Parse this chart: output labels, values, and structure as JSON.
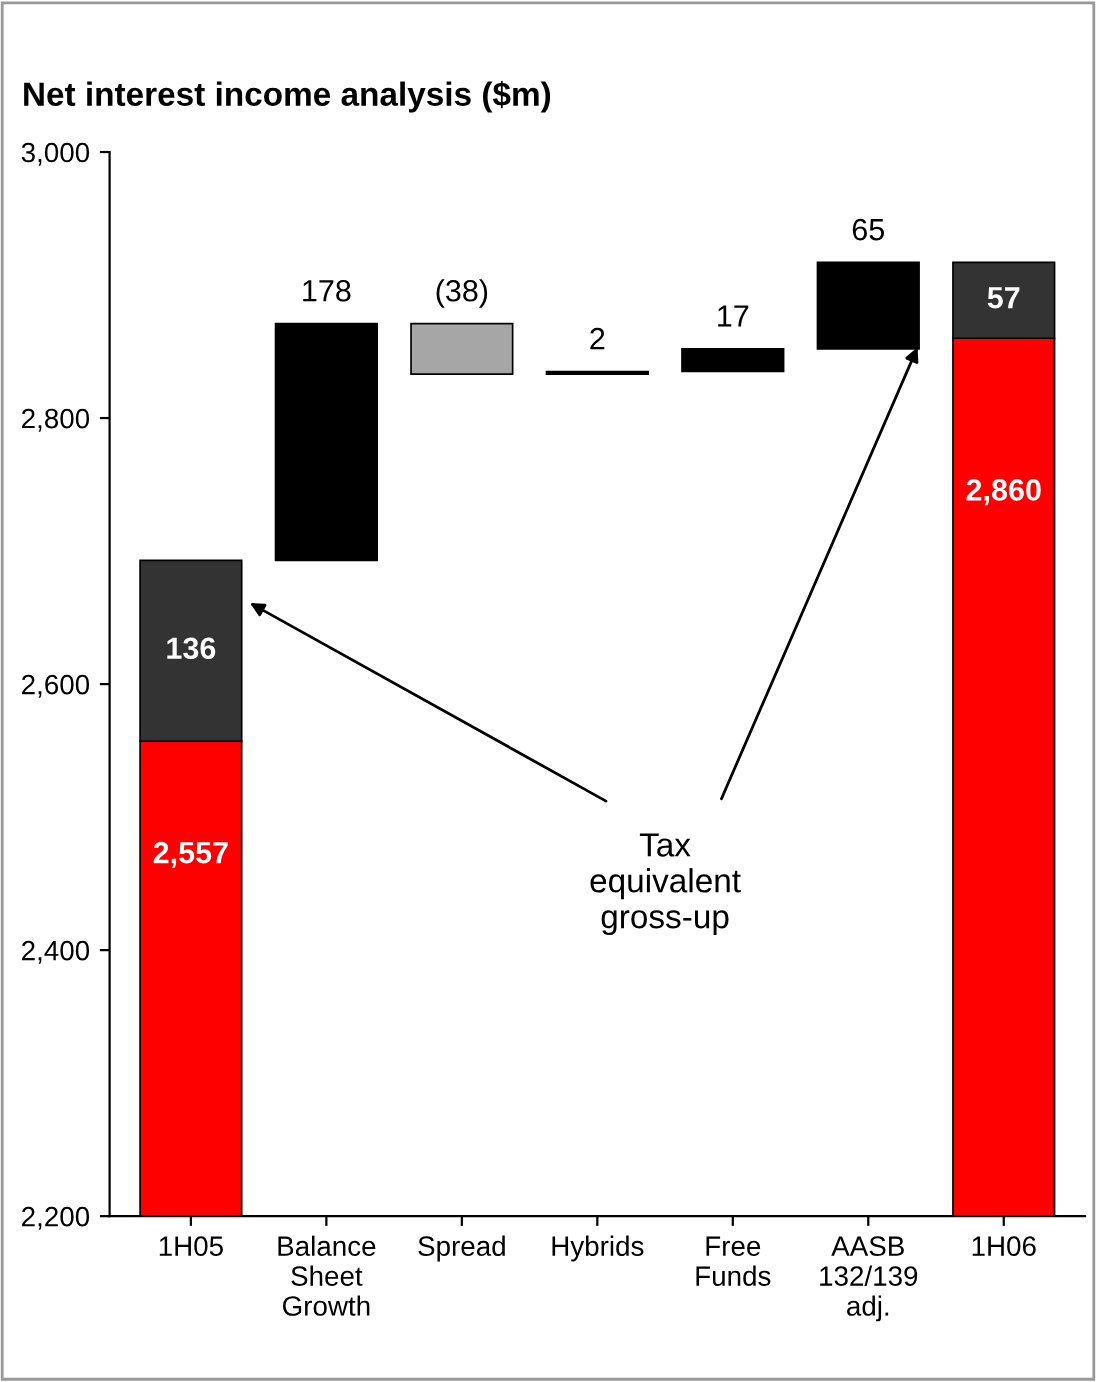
{
  "chart_data": {
    "type": "bar",
    "title": "Net interest income analysis ($m)",
    "categories": [
      "1H05",
      "Balance\nSheet\nGrowth",
      "Spread",
      "Hybrids",
      "Free\nFunds",
      "AASB\n132/139\nadj.",
      "1H06"
    ],
    "series": [
      {
        "color": "#ff0000",
        "values": [
          2557,
          null,
          null,
          null,
          null,
          null,
          2860
        ],
        "value_labels": [
          "2,557",
          null,
          null,
          null,
          null,
          null,
          "2,860"
        ]
      },
      {
        "color": "#333333",
        "base": [
          2557,
          null,
          null,
          null,
          null,
          null,
          2860
        ],
        "values": [
          136,
          null,
          null,
          null,
          null,
          null,
          57
        ],
        "value_labels": [
          "136",
          null,
          null,
          null,
          null,
          null,
          "57"
        ]
      },
      {
        "colors": [
          "#000000",
          "#000000",
          "#a6a6a6",
          "#000000",
          "#000000",
          "#000000",
          "#000000"
        ],
        "base": [
          null,
          2693,
          2871,
          2833,
          2835,
          2852,
          null
        ],
        "values": [
          null,
          178,
          -38,
          2,
          17,
          65,
          null
        ],
        "value_labels": [
          null,
          "178",
          "(38)",
          "2",
          "17",
          "65",
          null
        ]
      }
    ],
    "ylim": [
      2200,
      3000
    ],
    "yticks": [
      {
        "value": 2200,
        "label": "2,200"
      },
      {
        "value": 2400,
        "label": "2,400"
      },
      {
        "value": 2600,
        "label": "2,600"
      },
      {
        "value": 2800,
        "label": "2,800"
      },
      {
        "value": 3000,
        "label": "3,000"
      }
    ],
    "grid": false,
    "legend": false,
    "annotations": [
      "Tax\nequivalent\ngross-up"
    ]
  }
}
